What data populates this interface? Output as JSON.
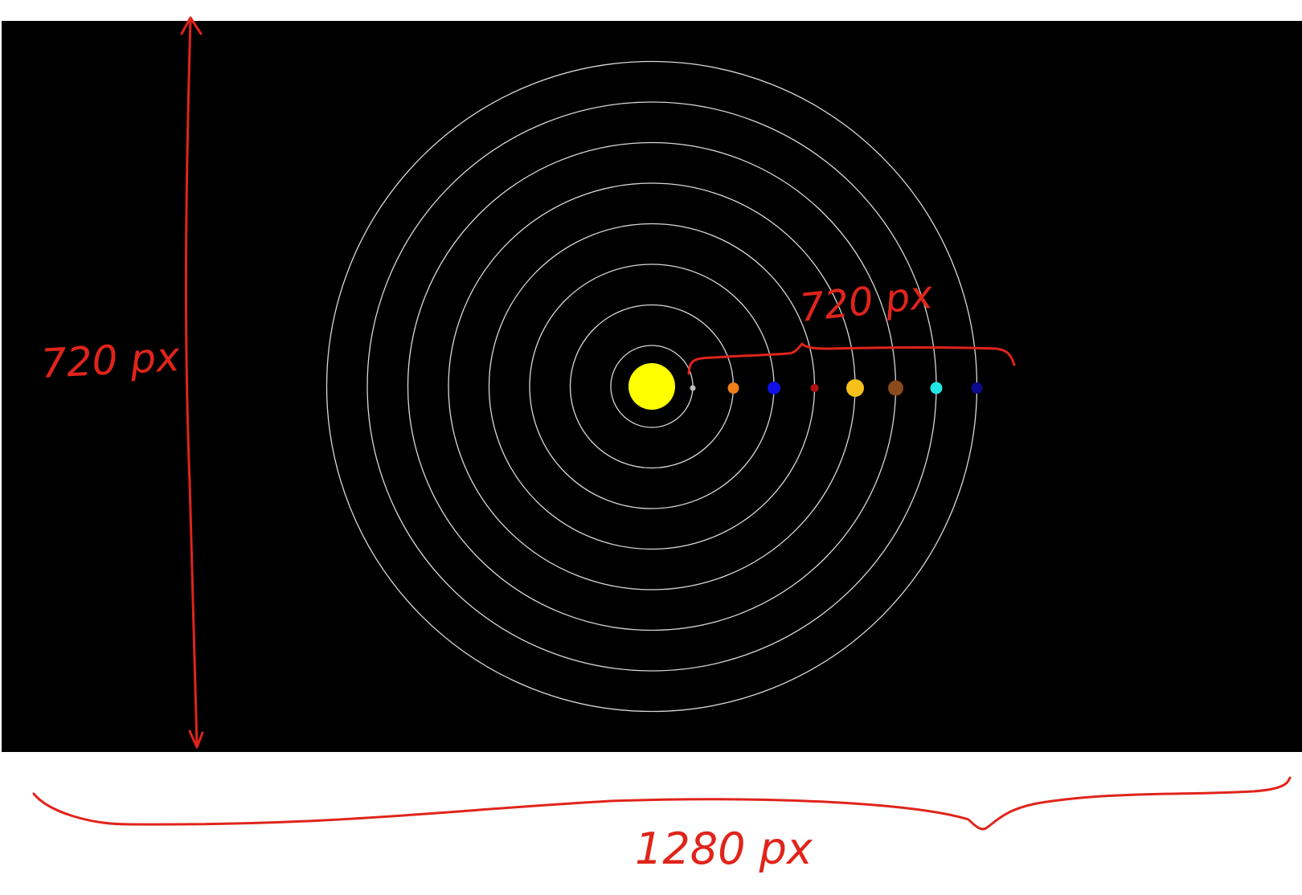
{
  "background_color": "#000000",
  "orbit_color": "#d8d8d8",
  "annotation_color": "#e0241b",
  "sun": {
    "name": "sun",
    "color": "#ffff00"
  },
  "planets": [
    {
      "name": "planet-1",
      "color": "#bfbfbf"
    },
    {
      "name": "planet-2",
      "color": "#f07f1a"
    },
    {
      "name": "planet-3",
      "color": "#1010e6"
    },
    {
      "name": "planet-4",
      "color": "#b01010"
    },
    {
      "name": "planet-5",
      "color": "#f5c11a"
    },
    {
      "name": "planet-6",
      "color": "#8b4a1e"
    },
    {
      "name": "planet-7",
      "color": "#22e6e6"
    },
    {
      "name": "planet-8",
      "color": "#0b0b8c"
    }
  ],
  "annotations": {
    "height_label": "720 px",
    "width_label": "1280 px",
    "orbit_span_label": "720 px"
  }
}
